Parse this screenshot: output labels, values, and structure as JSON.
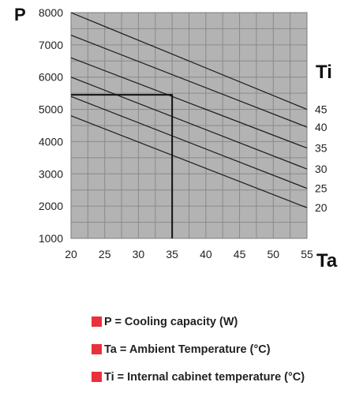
{
  "chart_data": {
    "type": "line",
    "x_axis": {
      "symbol": "Ta",
      "ticks": [
        20,
        25,
        30,
        35,
        40,
        45,
        50,
        55
      ],
      "range": [
        20,
        55
      ]
    },
    "y_axis": {
      "symbol": "P",
      "ticks": [
        1000,
        2000,
        3000,
        4000,
        5000,
        6000,
        7000,
        8000
      ],
      "range": [
        1000,
        8000
      ]
    },
    "series_axis_symbol": "Ti",
    "grid": true,
    "background_color": "#b3b3b3",
    "line_color": "#1a1a1a",
    "series": [
      {
        "name": "45",
        "x": [
          20,
          55
        ],
        "y": [
          8000,
          5000
        ]
      },
      {
        "name": "40",
        "x": [
          20,
          55
        ],
        "y": [
          7300,
          4450
        ]
      },
      {
        "name": "35",
        "x": [
          20,
          55
        ],
        "y": [
          6600,
          3800
        ]
      },
      {
        "name": "30",
        "x": [
          20,
          55
        ],
        "y": [
          6000,
          3150
        ]
      },
      {
        "name": "25",
        "x": [
          20,
          55
        ],
        "y": [
          5400,
          2550
        ]
      },
      {
        "name": "20",
        "x": [
          20,
          55
        ],
        "y": [
          4800,
          1950
        ]
      }
    ],
    "example_reading": {
      "x": 35,
      "y": 5450
    }
  },
  "legend": [
    {
      "text": "P = Cooling capacity (W)",
      "color": "#e8313c"
    },
    {
      "text": "Ta = Ambient Temperature (°C)",
      "color": "#e8313c"
    },
    {
      "text": "Ti = Internal cabinet temperature (°C)",
      "color": "#e8313c"
    }
  ]
}
